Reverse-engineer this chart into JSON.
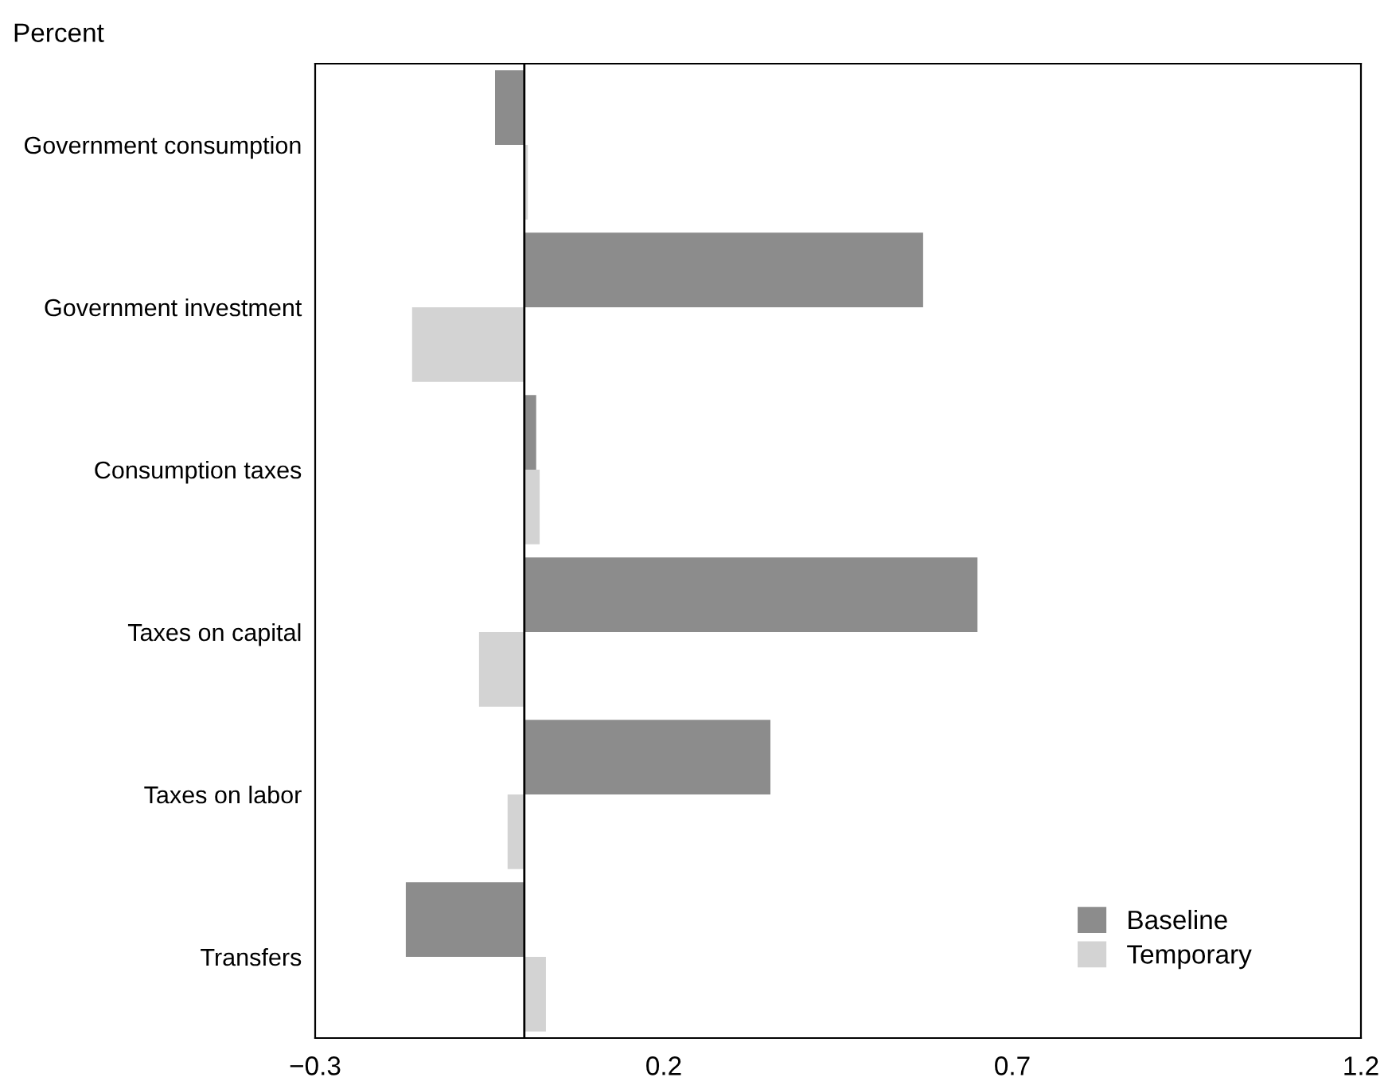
{
  "chart_data": {
    "type": "bar",
    "orientation": "horizontal",
    "ylabel": "Percent",
    "categories": [
      "Government consumption",
      "Government investment",
      "Consumption taxes",
      "Taxes on capital",
      "Taxes on labor",
      "Transfers"
    ],
    "series": [
      {
        "name": "Baseline",
        "color": "#8c8c8c",
        "values": [
          -0.042,
          0.572,
          0.017,
          0.65,
          0.353,
          -0.17
        ]
      },
      {
        "name": "Temporary",
        "color": "#d3d3d3",
        "values": [
          0.005,
          -0.161,
          0.022,
          -0.065,
          -0.024,
          0.031
        ]
      }
    ],
    "xlim": [
      -0.3,
      1.2
    ],
    "xticks": [
      {
        "value": -0.3,
        "label": "−0.3"
      },
      0.2,
      0.7,
      1.2
    ],
    "ref_lines": [
      {
        "axis": "x",
        "value": 0,
        "color": "#000000"
      }
    ],
    "legend": "bottom right",
    "grid": false
  }
}
